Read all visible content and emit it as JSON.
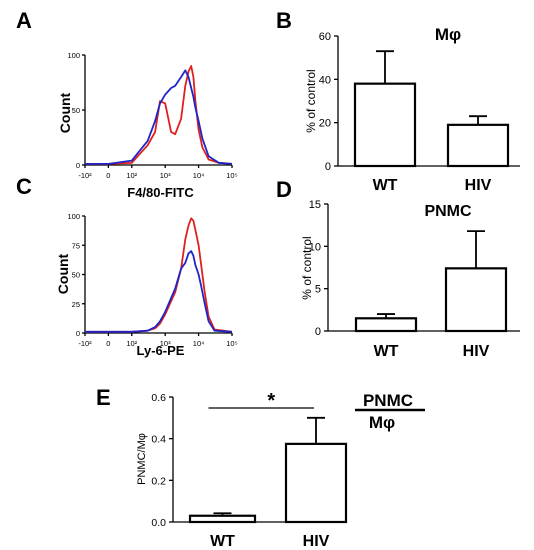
{
  "panels": [
    {
      "id": "A",
      "label": "A"
    },
    {
      "id": "B",
      "label": "B"
    },
    {
      "id": "C",
      "label": "C"
    },
    {
      "id": "D",
      "label": "D"
    },
    {
      "id": "E",
      "label": "E"
    }
  ],
  "ratio_label": {
    "numerator": "PNMC",
    "denominator": "Mφ"
  },
  "significance": "*",
  "chart_data": [
    {
      "panel": "A",
      "type": "line",
      "ylabel": "Count",
      "xlabel": "F4/80-FITC",
      "xscale": "biexponential",
      "x_ticks": [
        "-10²",
        "0",
        "10²",
        "10³",
        "10⁴",
        "10⁵"
      ],
      "y_ticks": [
        "0",
        "50",
        "100"
      ],
      "ylim": [
        0,
        100
      ],
      "series": [
        {
          "color": "#e0201e",
          "x": [
            -100,
            0,
            100,
            300,
            500,
            700,
            1000,
            1500,
            2000,
            3000,
            4000,
            5000,
            6000,
            7000,
            8000,
            10000,
            13000,
            20000,
            40000,
            100000
          ],
          "y": [
            1,
            1,
            2,
            18,
            30,
            58,
            56,
            30,
            28,
            42,
            72,
            85,
            90,
            80,
            58,
            32,
            16,
            5,
            2,
            1
          ]
        },
        {
          "color": "#1f25c8",
          "x": [
            -100,
            0,
            100,
            300,
            500,
            700,
            1000,
            1500,
            2000,
            3000,
            4000,
            5000,
            6000,
            7000,
            8000,
            10000,
            13000,
            20000,
            40000,
            100000
          ],
          "y": [
            1,
            1,
            4,
            22,
            40,
            56,
            64,
            70,
            72,
            80,
            86,
            80,
            70,
            62,
            52,
            40,
            24,
            8,
            2,
            1
          ]
        }
      ]
    },
    {
      "panel": "B",
      "type": "bar",
      "title": "Mφ",
      "ylabel": "% of control",
      "categories": [
        "WT",
        "HIV"
      ],
      "values": [
        38,
        19
      ],
      "errors": [
        15,
        4
      ],
      "ylim": [
        0,
        60
      ],
      "y_ticks": [
        "0",
        "20",
        "40",
        "60"
      ]
    },
    {
      "panel": "C",
      "type": "line",
      "ylabel": "Count",
      "xlabel": "Ly-6-PE",
      "xscale": "biexponential",
      "x_ticks": [
        "-10²",
        "0",
        "10²",
        "10³",
        "10⁴",
        "10⁵"
      ],
      "y_ticks": [
        "0",
        "25",
        "50",
        "75",
        "100"
      ],
      "ylim": [
        0,
        100
      ],
      "series": [
        {
          "color": "#e0201e",
          "x": [
            -100,
            0,
            100,
            300,
            500,
            700,
            1000,
            2000,
            3000,
            4000,
            5000,
            6000,
            7000,
            8000,
            10000,
            12000,
            15000,
            20000,
            30000,
            100000
          ],
          "y": [
            1,
            1,
            1,
            2,
            4,
            8,
            16,
            35,
            55,
            80,
            92,
            98,
            96,
            88,
            75,
            58,
            36,
            14,
            3,
            1
          ]
        },
        {
          "color": "#1f25c8",
          "x": [
            -100,
            0,
            100,
            300,
            500,
            700,
            1000,
            2000,
            3000,
            4000,
            5000,
            6000,
            7000,
            8000,
            10000,
            12000,
            15000,
            20000,
            30000,
            100000
          ],
          "y": [
            1,
            1,
            1,
            2,
            5,
            10,
            18,
            38,
            55,
            60,
            68,
            70,
            66,
            58,
            50,
            40,
            26,
            10,
            2,
            1
          ]
        }
      ]
    },
    {
      "panel": "D",
      "type": "bar",
      "title": "PNMC",
      "ylabel": "% of control",
      "categories": [
        "WT",
        "HIV"
      ],
      "values": [
        1.5,
        7.4
      ],
      "errors": [
        0.5,
        4.4
      ],
      "ylim": [
        0,
        15
      ],
      "y_ticks": [
        "0",
        "5",
        "10",
        "15"
      ]
    },
    {
      "panel": "E",
      "type": "bar",
      "ylabel": "PNMC/Mφ",
      "categories": [
        "WT",
        "HIV"
      ],
      "values": [
        0.03,
        0.375
      ],
      "errors": [
        0.012,
        0.125
      ],
      "ylim": [
        0,
        0.6
      ],
      "y_ticks": [
        "0.0",
        "0.2",
        "0.4",
        "0.6"
      ]
    }
  ]
}
